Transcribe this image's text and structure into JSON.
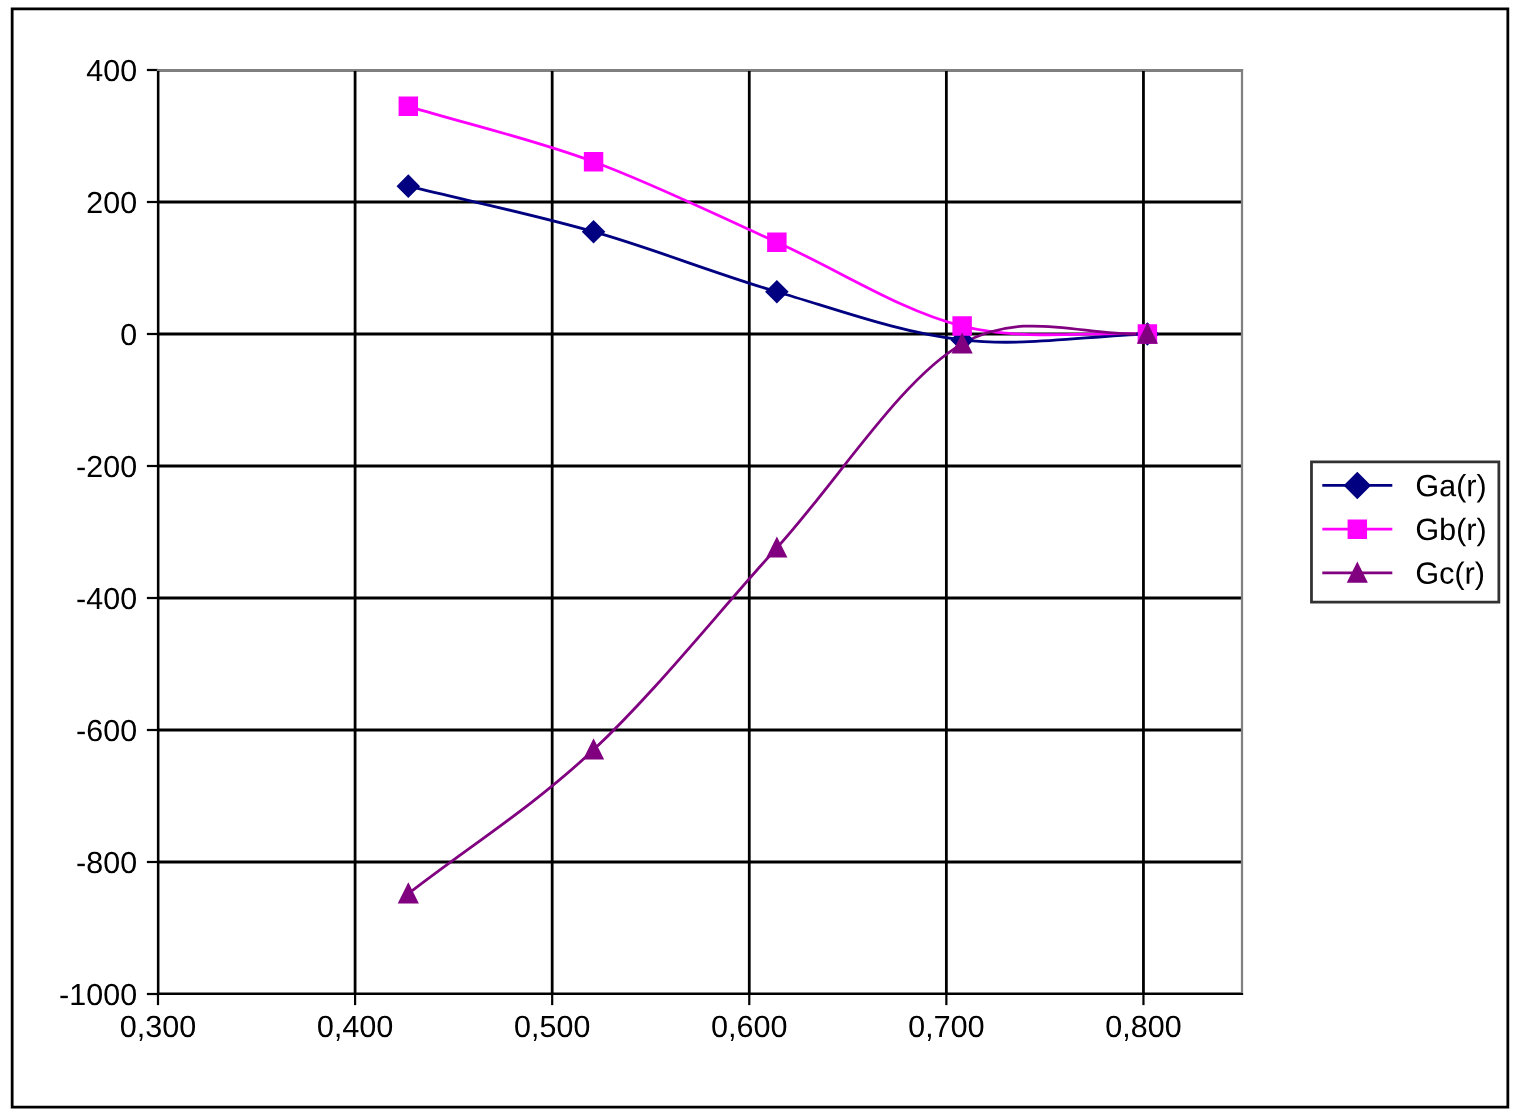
{
  "chart_data": {
    "type": "line",
    "x": [
      0.427,
      0.521,
      0.614,
      0.708,
      0.802
    ],
    "series": [
      {
        "name": "Ga(r)",
        "color": "#000080",
        "marker": "diamond",
        "values": [
          224,
          155,
          64,
          -9,
          0
        ]
      },
      {
        "name": "Gb(r)",
        "color": "#ff00ff",
        "marker": "square",
        "values": [
          345,
          261,
          139,
          12,
          0
        ]
      },
      {
        "name": "Gc(r)",
        "color": "#800080",
        "marker": "triangle",
        "values": [
          -848,
          -630,
          -324,
          -15,
          0
        ]
      }
    ],
    "xlim": [
      0.3,
      0.85
    ],
    "xticks": [
      {
        "value": 0.3,
        "label": "0,300"
      },
      {
        "value": 0.4,
        "label": "0,400"
      },
      {
        "value": 0.5,
        "label": "0,500"
      },
      {
        "value": 0.6,
        "label": "0,600"
      },
      {
        "value": 0.7,
        "label": "0,700"
      },
      {
        "value": 0.8,
        "label": "0,800"
      }
    ],
    "ylim": [
      -1000,
      400
    ],
    "yticks": [
      -1000,
      -800,
      -600,
      -400,
      -200,
      0,
      200,
      400
    ],
    "grid": true,
    "legend": "right",
    "line_style": "solid"
  }
}
